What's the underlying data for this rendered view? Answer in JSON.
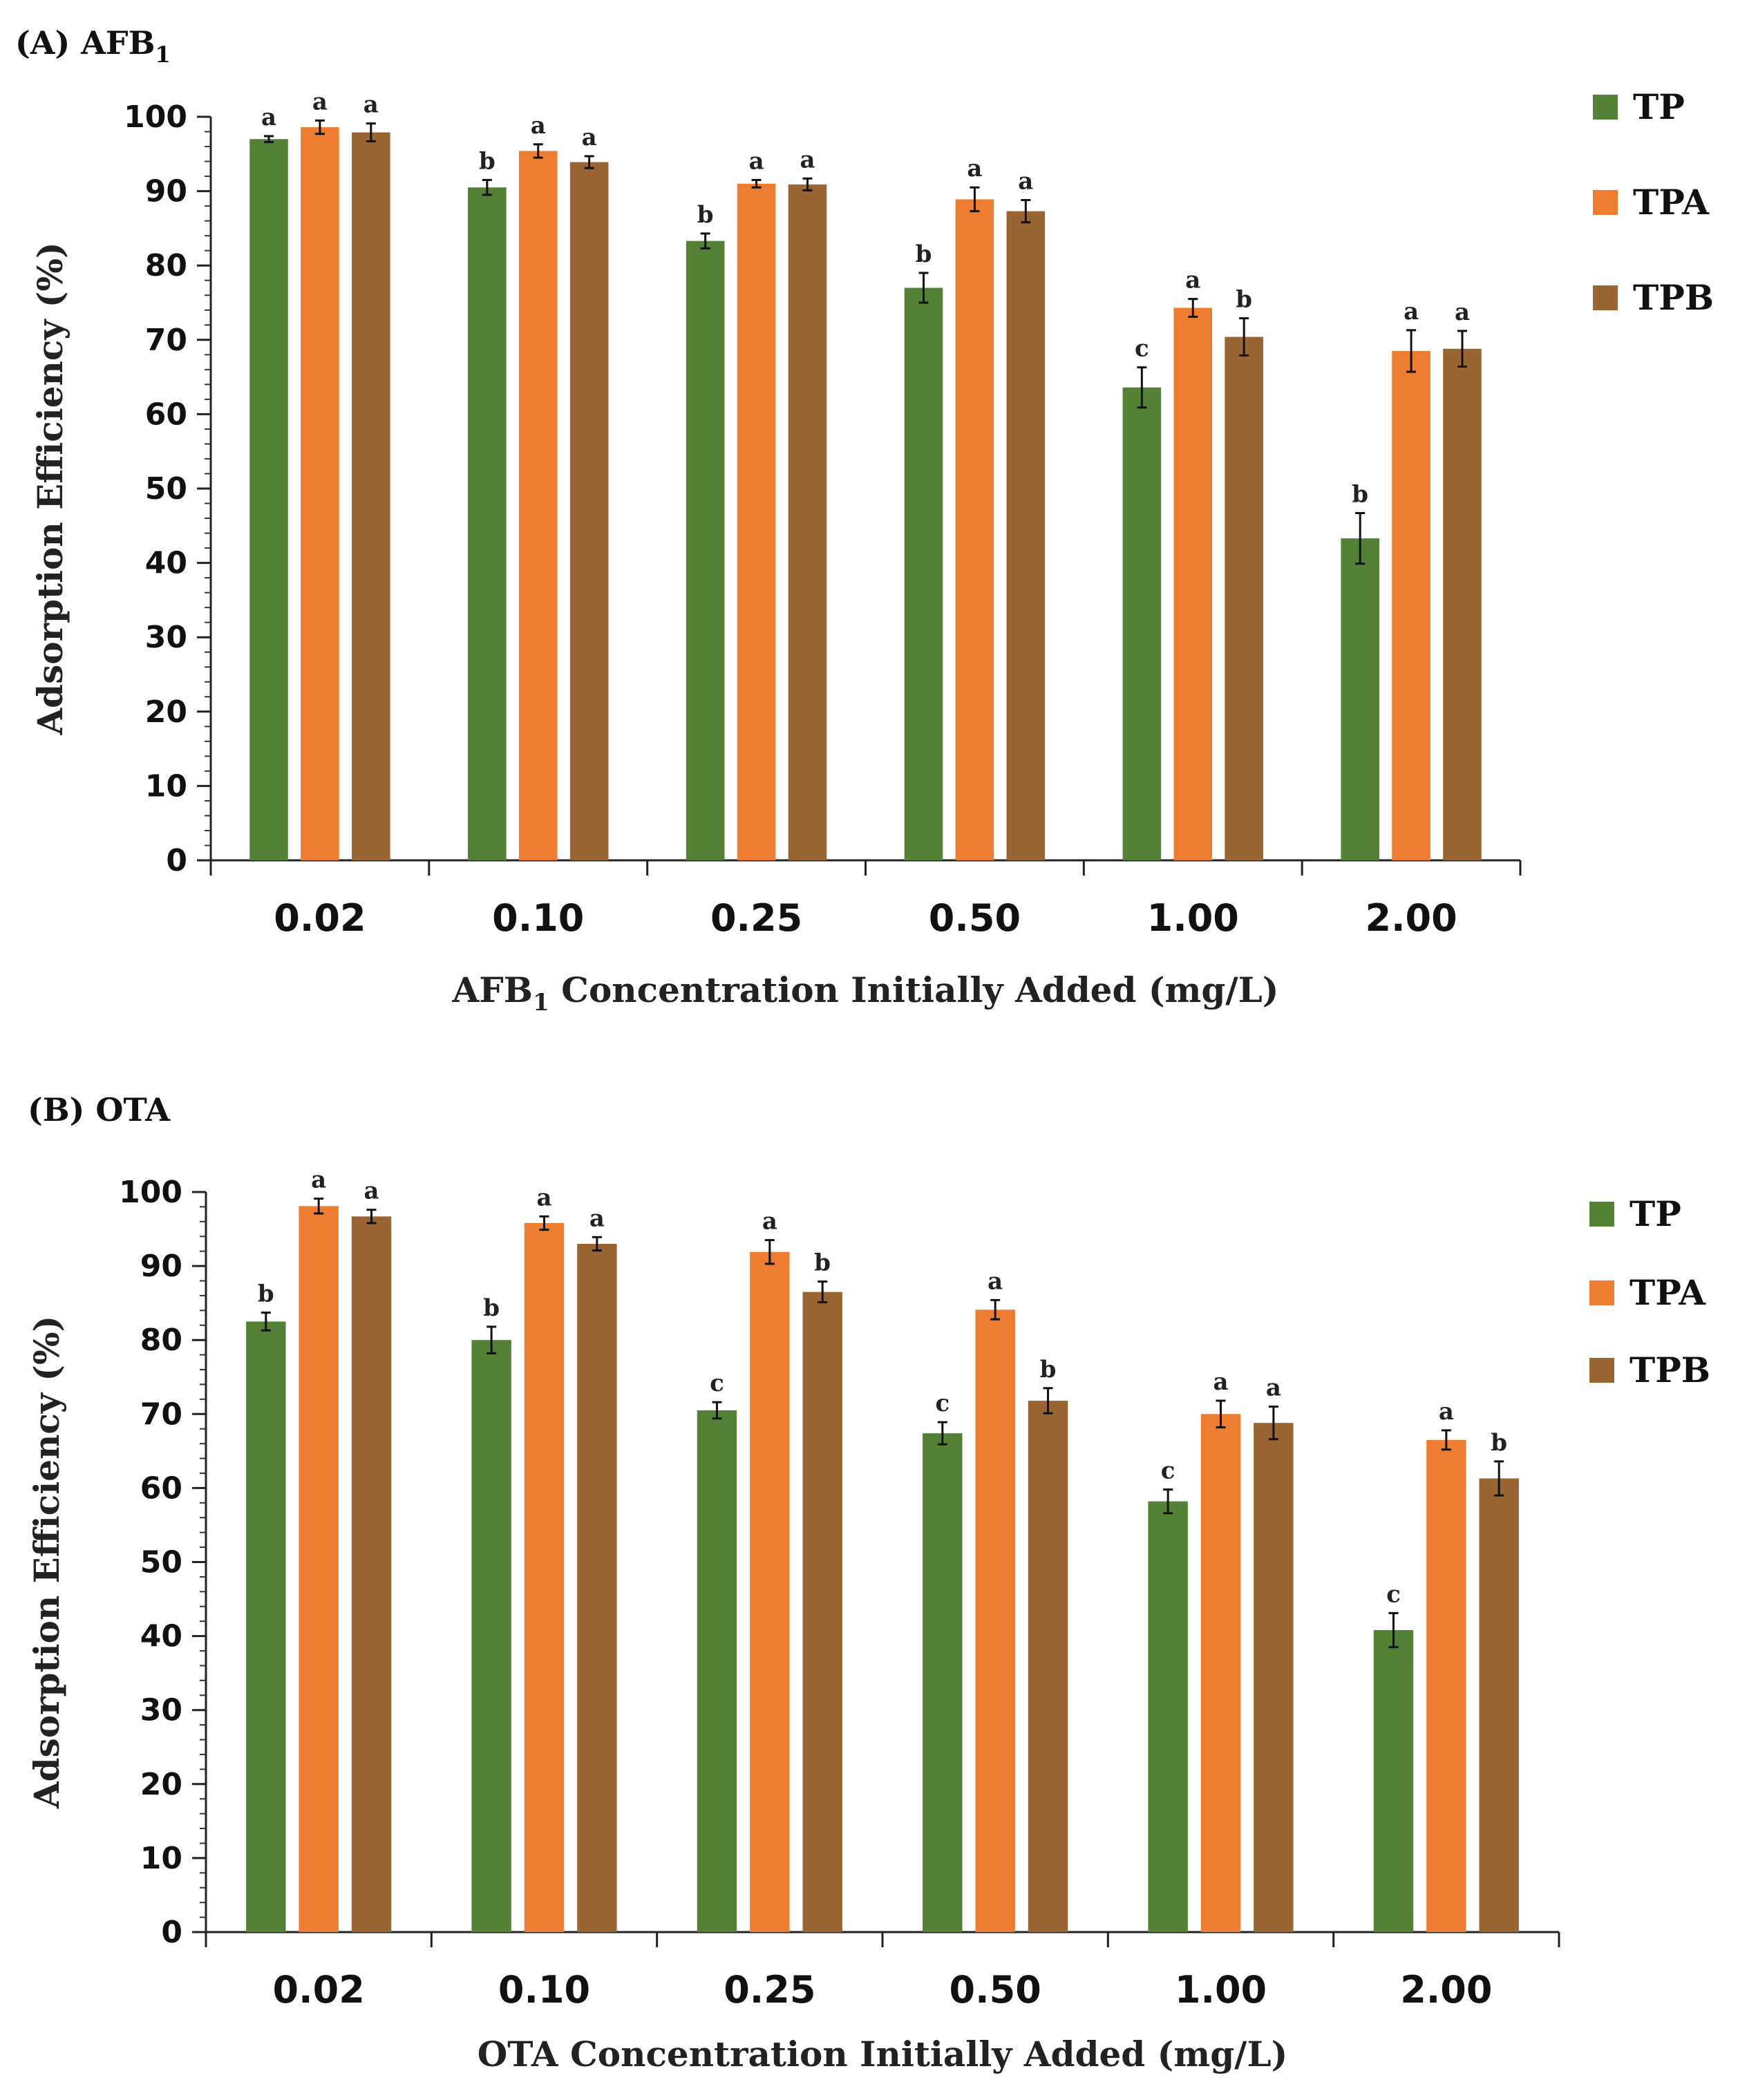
{
  "chart_data": [
    {
      "type": "bar",
      "panel": "(A)",
      "title": "AFB",
      "title_subscript": "1",
      "xlabel_prefix": "AFB",
      "xlabel_subscript": "1",
      "xlabel_suffix": " Concentration Initially Added (mg/L)",
      "ylabel": "Adsorption Efficiency (%)",
      "ylim": [
        0,
        100
      ],
      "yticks": [
        0,
        10,
        20,
        30,
        40,
        50,
        60,
        70,
        80,
        90,
        100
      ],
      "categories": [
        "0.02",
        "0.10",
        "0.25",
        "0.50",
        "1.00",
        "2.00"
      ],
      "legend_position": "right",
      "series": [
        {
          "name": "TP",
          "color": "#538135",
          "values": [
            97.0,
            90.5,
            83.3,
            77.0,
            63.6,
            43.3
          ],
          "errors": [
            0.4,
            1.0,
            1.0,
            2.0,
            2.7,
            3.4
          ],
          "labels": [
            "a",
            "b",
            "b",
            "b",
            "c",
            "b"
          ]
        },
        {
          "name": "TPA",
          "color": "#ED7D31",
          "values": [
            98.6,
            95.4,
            91.0,
            88.9,
            74.3,
            68.5
          ],
          "errors": [
            0.9,
            0.9,
            0.5,
            1.6,
            1.2,
            2.8
          ],
          "labels": [
            "a",
            "a",
            "a",
            "a",
            "a",
            "a"
          ]
        },
        {
          "name": "TPB",
          "color": "#996633",
          "values": [
            97.9,
            93.9,
            90.9,
            87.3,
            70.4,
            68.8
          ],
          "errors": [
            1.2,
            0.8,
            0.8,
            1.5,
            2.5,
            2.4
          ],
          "labels": [
            "a",
            "a",
            "a",
            "a",
            "b",
            "a"
          ]
        }
      ]
    },
    {
      "type": "bar",
      "panel": "(B)",
      "title": "OTA",
      "title_subscript": "",
      "xlabel_prefix": "OTA Concentration Initially Added (mg/L)",
      "xlabel_subscript": "",
      "xlabel_suffix": "",
      "ylabel": "Adsorption Efficiency (%)",
      "ylim": [
        0,
        100
      ],
      "yticks": [
        0,
        10,
        20,
        30,
        40,
        50,
        60,
        70,
        80,
        90,
        100
      ],
      "categories": [
        "0.02",
        "0.10",
        "0.25",
        "0.50",
        "1.00",
        "2.00"
      ],
      "legend_position": "right",
      "series": [
        {
          "name": "TP",
          "color": "#538135",
          "values": [
            82.5,
            80.0,
            70.5,
            67.4,
            58.2,
            40.8
          ],
          "errors": [
            1.2,
            1.8,
            1.1,
            1.5,
            1.6,
            2.3
          ],
          "labels": [
            "b",
            "b",
            "c",
            "c",
            "c",
            "c"
          ]
        },
        {
          "name": "TPA",
          "color": "#ED7D31",
          "values": [
            98.1,
            95.8,
            91.9,
            84.1,
            70.0,
            66.5
          ],
          "errors": [
            1.0,
            0.9,
            1.6,
            1.3,
            1.8,
            1.3
          ],
          "labels": [
            "a",
            "a",
            "a",
            "a",
            "a",
            "a"
          ]
        },
        {
          "name": "TPB",
          "color": "#996633",
          "values": [
            96.7,
            93.0,
            86.5,
            71.8,
            68.8,
            61.3
          ],
          "errors": [
            0.9,
            0.9,
            1.4,
            1.7,
            2.2,
            2.3
          ],
          "labels": [
            "a",
            "a",
            "b",
            "b",
            "a",
            "b"
          ]
        }
      ]
    }
  ]
}
